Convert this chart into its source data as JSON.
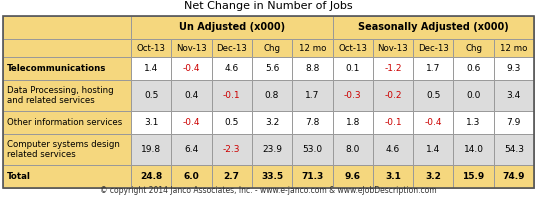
{
  "title": "Net Change in Number of Jobs",
  "copyright": "© copyright 2014 Janco Associates, Inc. - www.e-janco.com & www.eJobDescription.com",
  "col_headers_main": [
    "Un Adjusted (x000)",
    "Seasonally Adjusted (x000)"
  ],
  "col_headers_sub": [
    "Oct-13",
    "Nov-13",
    "Dec-13",
    "Chg",
    "12 mo",
    "Oct-13",
    "Nov-13",
    "Dec-13",
    "Chg",
    "12 mo"
  ],
  "row_labels": [
    "Telecommunications",
    "Data Processing, hosting\nand related services",
    "Other information services",
    "Computer systems design\nrelated services",
    "Total"
  ],
  "row_label_bold": [
    true,
    false,
    false,
    false,
    true
  ],
  "data": [
    [
      "1.4",
      "-0.4",
      "4.6",
      "5.6",
      "8.8",
      "0.1",
      "-1.2",
      "1.7",
      "0.6",
      "9.3"
    ],
    [
      "0.5",
      "0.4",
      "-0.1",
      "0.8",
      "1.7",
      "-0.3",
      "-0.2",
      "0.5",
      "0.0",
      "3.4"
    ],
    [
      "3.1",
      "-0.4",
      "0.5",
      "3.2",
      "7.8",
      "1.8",
      "-0.1",
      "-0.4",
      "1.3",
      "7.9"
    ],
    [
      "19.8",
      "6.4",
      "-2.3",
      "23.9",
      "53.0",
      "8.0",
      "4.6",
      "1.4",
      "14.0",
      "54.3"
    ],
    [
      "24.8",
      "6.0",
      "2.7",
      "33.5",
      "71.3",
      "9.6",
      "3.1",
      "3.2",
      "15.9",
      "74.9"
    ]
  ],
  "color_header_bg": "#F5D77E",
  "color_row_odd": "#FFFFFF",
  "color_row_even": "#DCDCDC",
  "color_total_bg": "#F5D77E",
  "color_negative": "#CC0000",
  "color_normal": "#000000",
  "color_border": "#999999",
  "color_title": "#000000",
  "color_bg": "#FFFFFF"
}
